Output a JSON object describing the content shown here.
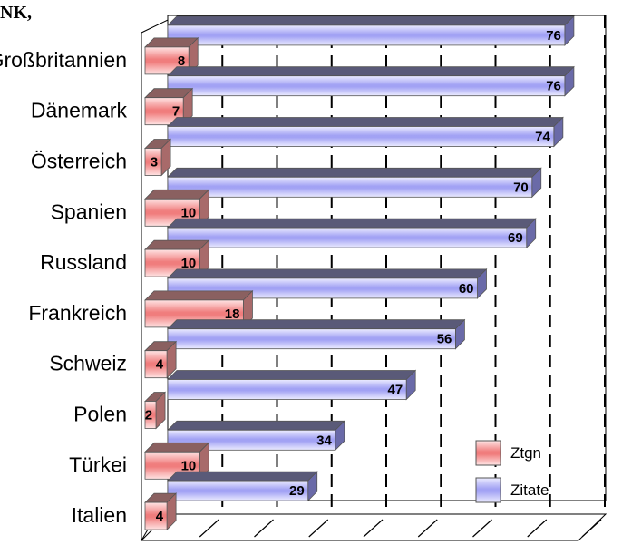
{
  "chart_data": {
    "type": "bar",
    "orientation": "horizontal",
    "title": "NK,",
    "categories": [
      "Großbritannien",
      "Dänemark",
      "Österreich",
      "Spanien",
      "Russland",
      "Frankreich",
      "Schweiz",
      "Polen",
      "Türkei",
      "Italien"
    ],
    "series": [
      {
        "name": "Ztgn",
        "values": [
          8,
          7,
          3,
          10,
          10,
          18,
          4,
          2,
          10,
          4
        ],
        "color": "#f8a0a0"
      },
      {
        "name": "Zitate",
        "values": [
          76,
          76,
          74,
          70,
          69,
          60,
          56,
          47,
          34,
          29
        ],
        "color": "#b8b8f8"
      }
    ],
    "xlim": [
      0,
      80
    ],
    "grid": true,
    "style_3d": true,
    "data_labels": true,
    "legend_position": "bottom-right"
  }
}
